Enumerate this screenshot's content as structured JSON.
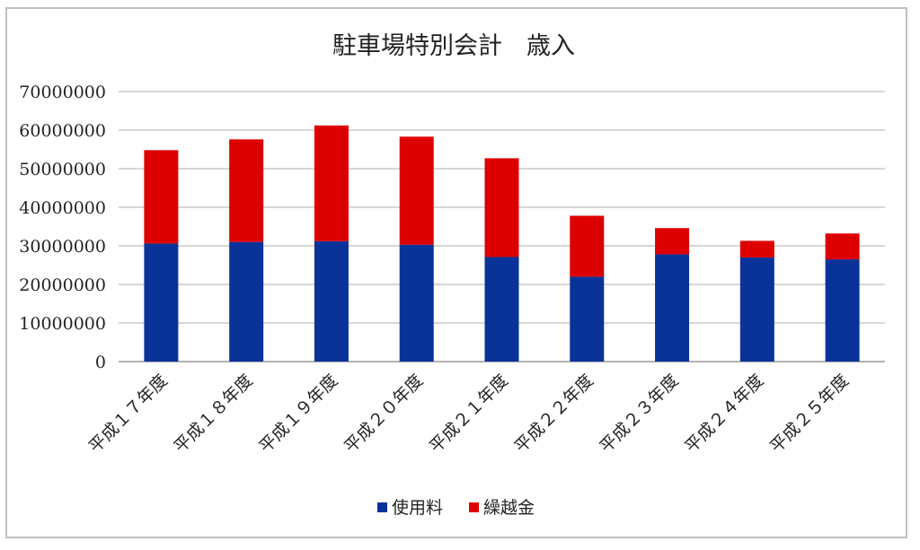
{
  "chart_data": {
    "type": "bar",
    "stacked": true,
    "title": "駐車場特別会計　歳入",
    "xlabel": "",
    "ylabel": "",
    "ylim": [
      0,
      70000000
    ],
    "yticks": [
      0,
      10000000,
      20000000,
      30000000,
      40000000,
      50000000,
      60000000,
      70000000
    ],
    "ytick_labels": [
      "0",
      "10000000",
      "20000000",
      "30000000",
      "40000000",
      "50000000",
      "60000000",
      "70000000"
    ],
    "grid": true,
    "legend_position": "bottom",
    "categories": [
      "平成１７年度",
      "平成１８年度",
      "平成１９年度",
      "平成２０年度",
      "平成２１年度",
      "平成２２年度",
      "平成２３年度",
      "平成２４年度",
      "平成２５年度"
    ],
    "series": [
      {
        "name": "使用料",
        "color": "#0a3399",
        "values": [
          30600000,
          31000000,
          31200000,
          30300000,
          27100000,
          22000000,
          27800000,
          27000000,
          26500000
        ]
      },
      {
        "name": "繰越金",
        "color": "#dd0000",
        "values": [
          24200000,
          26600000,
          30000000,
          28000000,
          25600000,
          15800000,
          6800000,
          4300000,
          6700000
        ]
      }
    ]
  }
}
